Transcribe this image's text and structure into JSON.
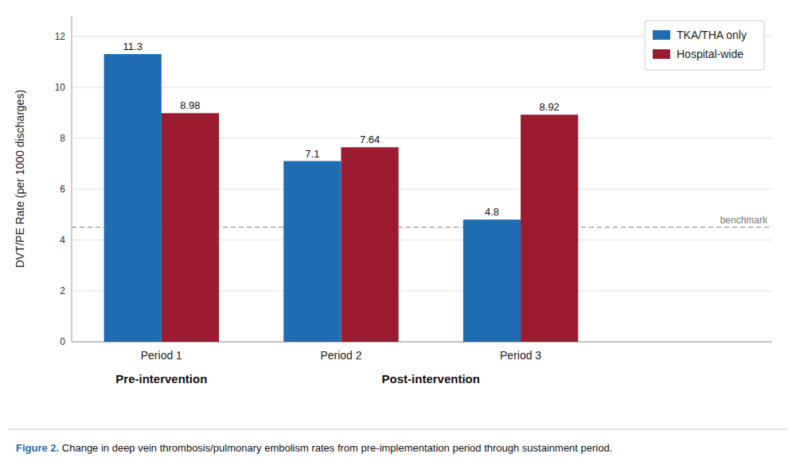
{
  "chart_data": {
    "type": "bar",
    "categories": [
      "Period 1",
      "Period 2",
      "Period 3"
    ],
    "series": [
      {
        "name": "TKA/THA only",
        "color": "#1F6CB0",
        "values": [
          11.3,
          7.1,
          4.8
        ]
      },
      {
        "name": "Hospital-wide",
        "color": "#9B1B30",
        "values": [
          8.98,
          7.64,
          8.92
        ]
      }
    ],
    "ylabel": "DVT/PE Rate (per 1000 discharges)",
    "ylim": [
      0,
      12.8
    ],
    "yticks": [
      0,
      2,
      4,
      6,
      8,
      10,
      12
    ],
    "grid": true,
    "legend": "upper right",
    "data_labels": true,
    "annotations": [
      {
        "type": "hline",
        "y": 4.5,
        "text": "benchmark",
        "line_style": "dashed"
      }
    ],
    "groups": [
      {
        "label": "Pre-intervention",
        "categories": [
          "Period 1"
        ]
      },
      {
        "label": "Post-intervention",
        "categories": [
          "Period 2",
          "Period 3"
        ]
      }
    ],
    "caption": {
      "label": "Figure 2.",
      "text": " Change in deep vein thrombosis/pulmonary embolism rates from pre-implementation period through sustainment period.",
      "color": "#1F6CB0"
    }
  }
}
